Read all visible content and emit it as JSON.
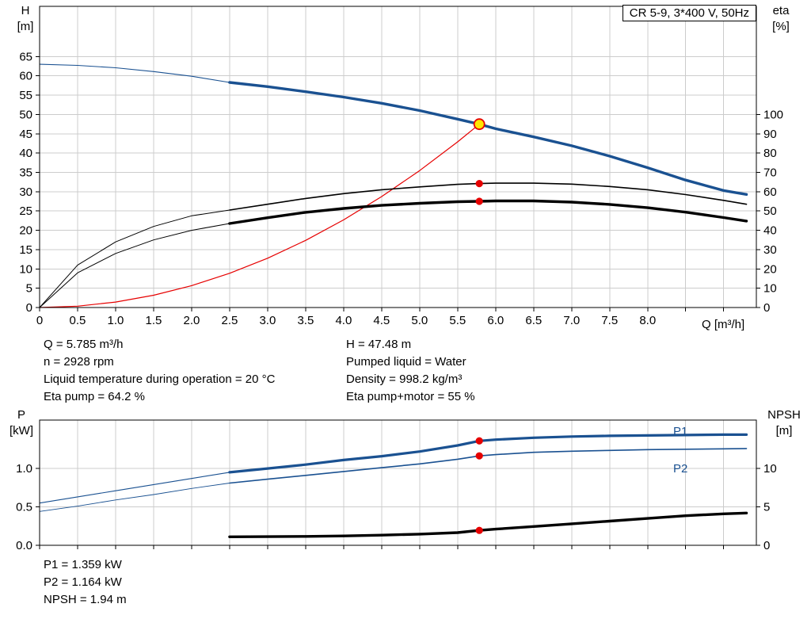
{
  "colors": {
    "blue": "#1a5191",
    "red": "#e60000",
    "black": "#000000",
    "yellow": "#ffe600",
    "grid": "#cccccc"
  },
  "chart_data": [
    {
      "type": "line",
      "title": "CR 5-9, 3*400 V, 50Hz",
      "x_axis": {
        "label": "Q [m³/h]",
        "max": 9.43,
        "tick_values": [
          0,
          0.5,
          1,
          1.5,
          2,
          2.5,
          3,
          3.5,
          4,
          4.5,
          5,
          5.5,
          6,
          6.5,
          7,
          7.5,
          8,
          8.5,
          9
        ],
        "tick_labels": [
          "0",
          "0.5",
          "1.0",
          "1.5",
          "2.0",
          "2.5",
          "3.0",
          "3.5",
          "4.0",
          "4.5",
          "5.0",
          "5.5",
          "6.0",
          "6.5",
          "7.0",
          "7.5",
          "8.0"
        ]
      },
      "y_left": {
        "title_lines": [
          "H",
          "[m]"
        ],
        "max": 78,
        "ticks": [
          0,
          5,
          10,
          15,
          20,
          25,
          30,
          35,
          40,
          45,
          50,
          55,
          60,
          65
        ],
        "tick_labels": [
          "0",
          "5",
          "10",
          "15",
          "20",
          "25",
          "30",
          "35",
          "40",
          "45",
          "50",
          "55",
          "60",
          "65"
        ]
      },
      "y_right": {
        "title_lines": [
          "eta",
          "[%]"
        ],
        "left_equiv": 0.5,
        "ticks": [
          0,
          10,
          20,
          30,
          40,
          50,
          60,
          70,
          80,
          90,
          100
        ],
        "tick_labels": [
          "0",
          "10",
          "20",
          "30",
          "40",
          "50",
          "60",
          "70",
          "80",
          "90",
          "100"
        ]
      },
      "series": [
        {
          "name": "system-curve",
          "color": "red",
          "axis": "left",
          "w": 1.2,
          "x": [
            0,
            0.5,
            1,
            1.5,
            2,
            2.5,
            3,
            3.5,
            4,
            4.5,
            5,
            5.5,
            5.785
          ],
          "y": [
            0,
            0.35,
            1.42,
            3.19,
            5.67,
            8.87,
            12.77,
            17.38,
            22.7,
            28.73,
            35.47,
            42.91,
            47.48
          ]
        },
        {
          "name": "eta-pump",
          "color": "black",
          "axis": "right",
          "thin_to": 2.5,
          "w_thin": 1,
          "w_thick": 1.6,
          "x": [
            0,
            0.5,
            1,
            1.5,
            2,
            2.5,
            3,
            3.5,
            4,
            4.5,
            5,
            5.5,
            5.785,
            6,
            6.5,
            7,
            7.5,
            8,
            8.5,
            9,
            9.3
          ],
          "y": [
            0,
            22,
            34,
            42,
            47.5,
            50.5,
            53.5,
            56.5,
            59,
            61,
            62.5,
            63.8,
            64.2,
            64.4,
            64.4,
            63.9,
            62.7,
            61,
            58.5,
            55.5,
            53.5
          ]
        },
        {
          "name": "eta-pump-and-motor",
          "color": "black",
          "axis": "right",
          "thin_to": 2.5,
          "w_thin": 1,
          "w_thick": 3.4,
          "x": [
            0,
            0.5,
            1,
            1.5,
            2,
            2.5,
            3,
            3.5,
            4,
            4.5,
            5,
            5.5,
            5.785,
            6,
            6.5,
            7,
            7.5,
            8,
            8.5,
            9,
            9.3
          ],
          "y": [
            0,
            18,
            28,
            35,
            40,
            43.5,
            46.5,
            49.3,
            51.3,
            52.9,
            54,
            54.8,
            55,
            55.2,
            55.2,
            54.6,
            53.4,
            51.7,
            49.4,
            46.6,
            44.8
          ]
        },
        {
          "name": "head",
          "color": "blue",
          "axis": "left",
          "thin_to": 2.5,
          "w_thin": 1.1,
          "w_thick": 3.4,
          "x": [
            0,
            0.5,
            1,
            1.5,
            2,
            2.5,
            3,
            3.5,
            4,
            4.5,
            5,
            5.5,
            5.785,
            6,
            6.5,
            7,
            7.5,
            8,
            8.5,
            9,
            9.3
          ],
          "y": [
            63,
            62.7,
            62.1,
            61.1,
            59.9,
            58.3,
            57.2,
            55.9,
            54.5,
            52.9,
            51,
            48.8,
            47.48,
            46.3,
            44.2,
            41.9,
            39.2,
            36.2,
            33,
            30.3,
            29.3
          ]
        }
      ],
      "markers": [
        {
          "name": "eta-pump-point",
          "x": 5.785,
          "y": 64.2,
          "axis": "right",
          "style": "dot"
        },
        {
          "name": "eta-pump-motor-point",
          "x": 5.785,
          "y": 55,
          "axis": "right",
          "style": "dot"
        },
        {
          "name": "duty-point",
          "x": 5.785,
          "y": 47.48,
          "axis": "left",
          "style": "duty"
        }
      ]
    },
    {
      "type": "line",
      "title": "",
      "x_axis": {
        "label": "",
        "max": 9.43,
        "tick_values": [
          0,
          0.5,
          1,
          1.5,
          2,
          2.5,
          3,
          3.5,
          4,
          4.5,
          5,
          5.5,
          6,
          6.5,
          7,
          7.5,
          8,
          8.5,
          9
        ],
        "tick_labels": []
      },
      "y_left": {
        "title_lines": [
          "P",
          "[kW]"
        ],
        "max": 1.63,
        "ticks": [
          0,
          0.5,
          1
        ],
        "tick_labels": [
          "0.0",
          "0.5",
          "1.0"
        ]
      },
      "y_right": {
        "title_lines": [
          "NPSH",
          "[m]"
        ],
        "left_equiv": 0.1,
        "ticks": [
          0,
          5,
          10
        ],
        "tick_labels": [
          "0",
          "5",
          "10"
        ]
      },
      "curve_labels": [
        "P1",
        "P2"
      ],
      "series": [
        {
          "name": "npsh",
          "color": "black",
          "axis": "right",
          "w": 3.4,
          "x": [
            2.5,
            3,
            3.5,
            4,
            4.5,
            5,
            5.5,
            5.785,
            6,
            6.5,
            7,
            7.5,
            8,
            8.5,
            9,
            9.3
          ],
          "y": [
            1.1,
            1.12,
            1.16,
            1.22,
            1.32,
            1.45,
            1.65,
            1.94,
            2.1,
            2.45,
            2.8,
            3.15,
            3.5,
            3.85,
            4.1,
            4.2
          ]
        },
        {
          "name": "p2",
          "color": "blue",
          "axis": "left",
          "thin_to": 2.5,
          "w_thin": 0.9,
          "w_thick": 1.6,
          "x": [
            0,
            0.5,
            1,
            1.5,
            2,
            2.5,
            3,
            3.5,
            4,
            4.5,
            5,
            5.5,
            5.785,
            6,
            6.5,
            7,
            7.5,
            8,
            8.5,
            9,
            9.3
          ],
          "y": [
            0.44,
            0.51,
            0.59,
            0.66,
            0.74,
            0.81,
            0.86,
            0.91,
            0.96,
            1.01,
            1.06,
            1.12,
            1.164,
            1.18,
            1.21,
            1.225,
            1.235,
            1.245,
            1.25,
            1.255,
            1.26
          ]
        },
        {
          "name": "p1",
          "color": "blue",
          "axis": "left",
          "thin_to": 2.5,
          "w_thin": 1.1,
          "w_thick": 3.2,
          "x": [
            0,
            0.5,
            1,
            1.5,
            2,
            2.5,
            3,
            3.5,
            4,
            4.5,
            5,
            5.5,
            5.785,
            6,
            6.5,
            7,
            7.5,
            8,
            8.5,
            9,
            9.3
          ],
          "y": [
            0.55,
            0.63,
            0.71,
            0.79,
            0.87,
            0.95,
            1.0,
            1.05,
            1.11,
            1.16,
            1.22,
            1.3,
            1.359,
            1.375,
            1.4,
            1.415,
            1.425,
            1.43,
            1.435,
            1.44,
            1.44
          ]
        }
      ],
      "markers": [
        {
          "name": "p1-point",
          "x": 5.785,
          "y": 1.359,
          "axis": "left",
          "style": "dot"
        },
        {
          "name": "p2-point",
          "x": 5.785,
          "y": 1.164,
          "axis": "left",
          "style": "dot"
        },
        {
          "name": "npsh-point",
          "x": 5.785,
          "y": 1.94,
          "axis": "right",
          "style": "dot"
        }
      ]
    }
  ],
  "annotations": {
    "left": [
      "Q = 5.785 m³/h",
      "n = 2928 rpm",
      "Liquid temperature during operation = 20 °C",
      "Eta pump = 64.2 %"
    ],
    "right": [
      "H = 47.48 m",
      "Pumped liquid = Water",
      "Density = 998.2 kg/m³",
      "Eta pump+motor = 55 %"
    ],
    "power": [
      "P1 = 1.359 kW",
      "P2 = 1.164 kW",
      "NPSH = 1.94 m"
    ]
  }
}
